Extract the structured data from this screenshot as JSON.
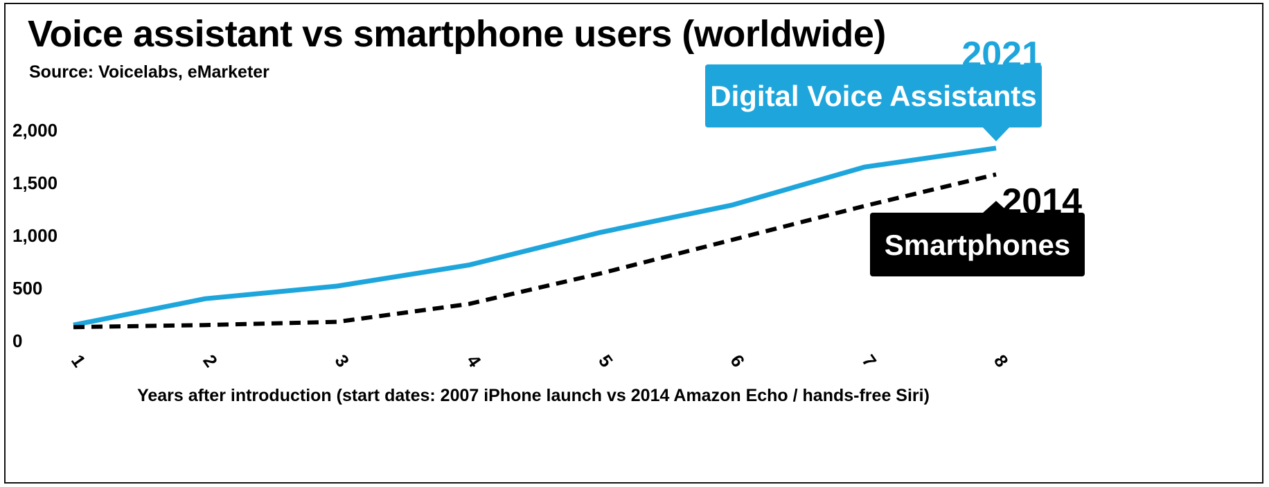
{
  "title": "Voice assistant vs smartphone users (worldwide)",
  "subtitle": "Source: Voicelabs, eMarketer",
  "colors": {
    "voice": "#1ea6dc",
    "smartphones": "#000000"
  },
  "chart_data": {
    "type": "line",
    "x": [
      1,
      2,
      3,
      4,
      5,
      6,
      7,
      8
    ],
    "xlabel": "Years after introduction (start dates: 2007 iPhone launch vs 2014 Amazon Echo / hands-free Siri)",
    "ylabel": "",
    "xlim": [
      1,
      8
    ],
    "ylim": [
      0,
      2000
    ],
    "yticks": [
      0,
      500,
      1000,
      1500,
      2000
    ],
    "ytick_labels": [
      "0",
      "500",
      "1,000",
      "1,500",
      "2,000"
    ],
    "xtick_labels": [
      "1",
      "2",
      "3",
      "4",
      "5",
      "6",
      "7",
      "8"
    ],
    "grid": false,
    "series": [
      {
        "name": "Digital Voice Assistants",
        "year": "2021",
        "style": "solid",
        "color": "#1ea6dc",
        "values": [
          150,
          400,
          520,
          720,
          1030,
          1290,
          1650,
          1830
        ]
      },
      {
        "name": "Smartphones",
        "year": "2014",
        "style": "dashed",
        "color": "#000000",
        "values": [
          130,
          150,
          180,
          350,
          640,
          960,
          1280,
          1580
        ]
      }
    ]
  }
}
